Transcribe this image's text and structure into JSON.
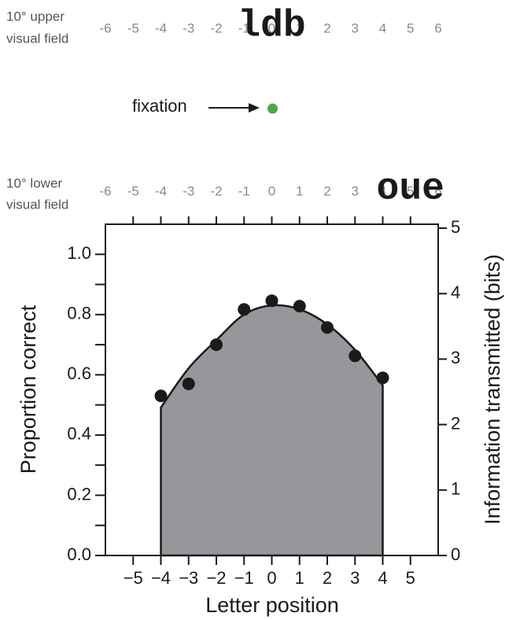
{
  "diagram": {
    "upper": {
      "label": [
        "10° upper",
        "visual field"
      ],
      "trigram": {
        "text": "ldb",
        "position": 0
      }
    },
    "lower": {
      "label": [
        "10° lower",
        "visual field"
      ],
      "trigram": {
        "text": "oue",
        "position": 5
      }
    },
    "positions": [
      -6,
      -5,
      -4,
      -3,
      -2,
      -1,
      0,
      1,
      2,
      3,
      4,
      5,
      6
    ],
    "fixation": "fixation"
  },
  "chart_data": {
    "type": "combo",
    "x_label": "Letter position",
    "y_label": "Proportion correct",
    "y2_label": "Information transmitted (bits)",
    "x": [
      -4,
      -3,
      -2,
      -1,
      0,
      1,
      2,
      3,
      4
    ],
    "series": [
      {
        "type": "area",
        "axis": "y2",
        "color": "#96979b",
        "values": [
          2.26,
          2.86,
          3.29,
          3.68,
          3.82,
          3.76,
          3.53,
          3.14,
          2.6
        ]
      },
      {
        "type": "scatter",
        "color": "#1a1a1a",
        "values": [
          0.53,
          0.57,
          0.7,
          0.817,
          0.846,
          0.828,
          0.757,
          0.663,
          0.59
        ]
      }
    ],
    "xlim": [
      -6,
      6
    ],
    "xticks": [
      {
        "value": -5,
        "label": "−5"
      },
      {
        "value": -4,
        "label": "−4"
      },
      {
        "value": -3,
        "label": "−3"
      },
      {
        "value": -2,
        "label": "−2"
      },
      {
        "value": -1,
        "label": "−1"
      },
      0,
      1,
      2,
      3,
      4,
      5
    ],
    "ylim": [
      0,
      1.1
    ],
    "yticks": [
      {
        "value": 0,
        "label": "0.0"
      },
      0.2,
      0.4,
      0.6,
      0.8,
      {
        "value": 1,
        "label": "1.0"
      }
    ],
    "yminorticks": [
      0.1,
      0.3,
      0.5,
      0.7,
      0.9
    ],
    "y2lim": [
      0,
      5.06
    ],
    "y2ticks": [
      0,
      1,
      2,
      3,
      4,
      5
    ]
  }
}
